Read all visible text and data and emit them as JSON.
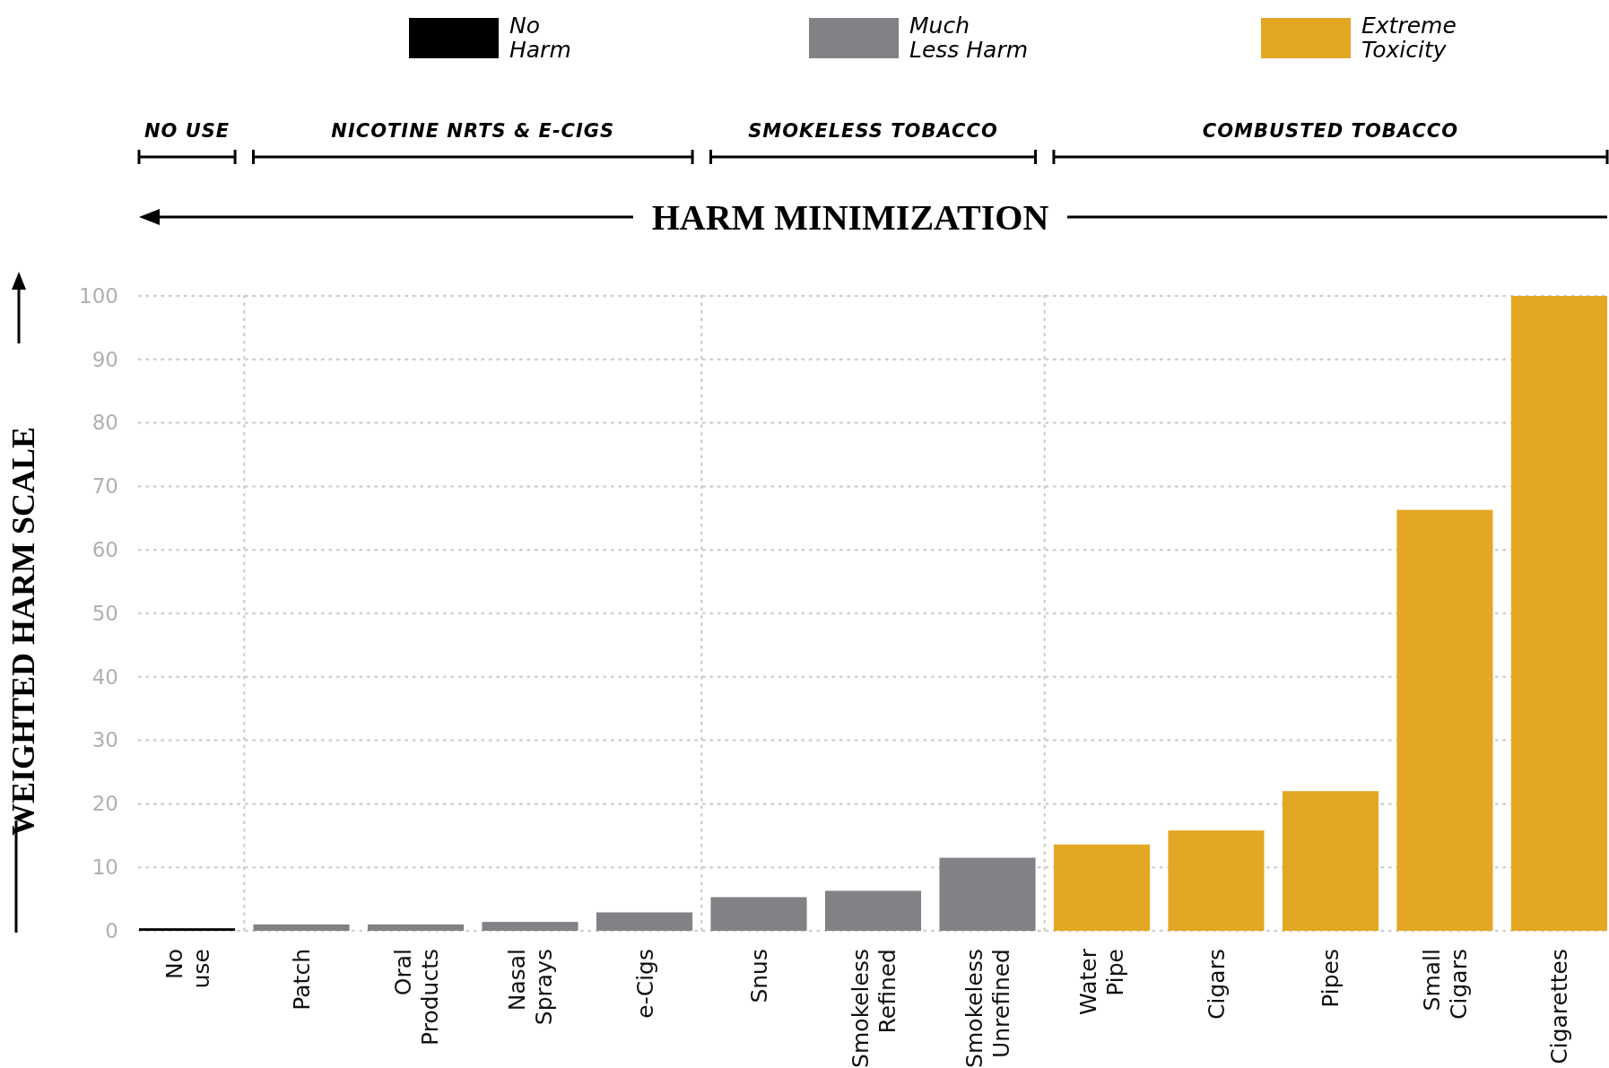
{
  "chart_data": {
    "type": "bar",
    "ylabel": "WEIGHTED HARM SCALE",
    "categories": [
      "No use",
      "Patch",
      "Oral Products",
      "Nasal Sprays",
      "e-Cigs",
      "Snus",
      "Smokeless Refined",
      "Smokeless Unrefined",
      "Water Pipe",
      "Cigars",
      "Pipes",
      "Small Cigars",
      "Cigarettes"
    ],
    "series": [
      {
        "name": "No Harm",
        "color": "#000000",
        "values": [
          0.4,
          null,
          null,
          null,
          null,
          null,
          null,
          null,
          null,
          null,
          null,
          null,
          null
        ]
      },
      {
        "name": "Much Less Harm",
        "color": "#808285",
        "values": [
          null,
          1.0,
          1.0,
          1.4,
          2.9,
          5.3,
          6.3,
          11.5,
          null,
          null,
          null,
          null,
          null
        ]
      },
      {
        "name": "Extreme Toxicity",
        "color": "#e4a724",
        "values": [
          null,
          null,
          null,
          null,
          null,
          null,
          null,
          null,
          13.6,
          15.8,
          22,
          66.3,
          100
        ]
      }
    ],
    "ylim": [
      0,
      100
    ],
    "yticks": [
      0,
      10,
      20,
      30,
      40,
      50,
      60,
      70,
      80,
      90,
      100
    ],
    "grid": "y",
    "legend": "top",
    "annotations": [
      "HARM MINIMIZATION",
      "NO USE",
      "NICOTINE NRTS & E-CIGS",
      "SMOKELESS TOBACCO",
      "COMBUSTED TOBACCO"
    ]
  }
}
